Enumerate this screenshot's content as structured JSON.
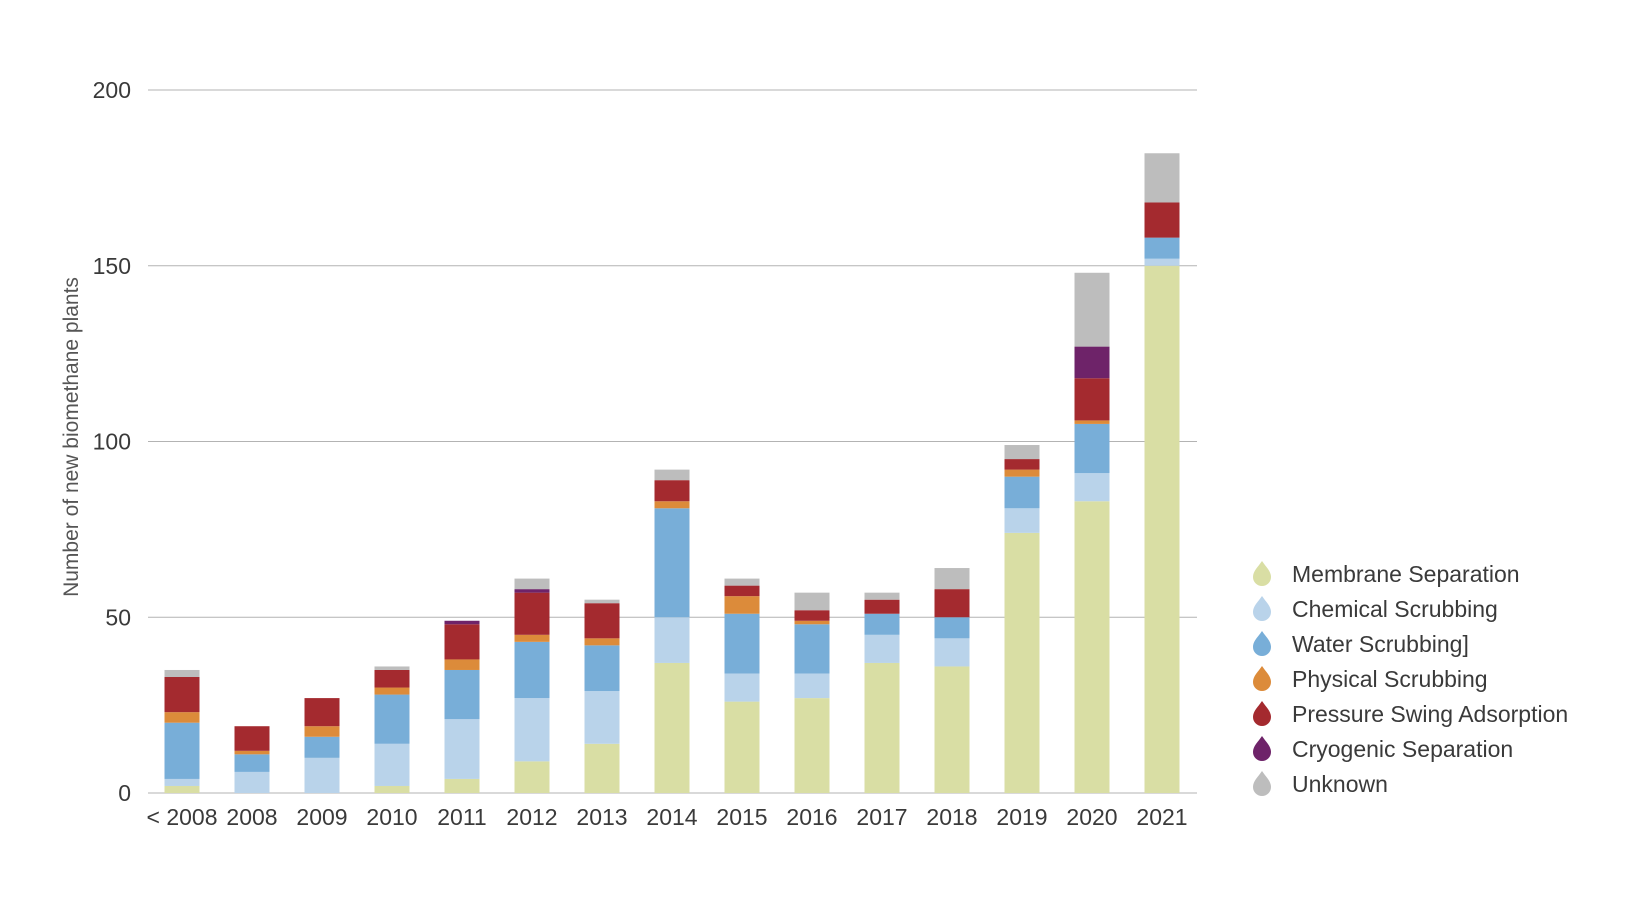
{
  "chart_data": {
    "type": "bar",
    "stacked": true,
    "title": "",
    "xlabel": "",
    "ylabel": "Number of new biomethane plants",
    "ylim": [
      0,
      200
    ],
    "yticks": [
      0,
      50,
      100,
      150,
      200
    ],
    "grid": true,
    "legend_position": "right",
    "categories": [
      "< 2008",
      "2008",
      "2009",
      "2010",
      "2011",
      "2012",
      "2013",
      "2014",
      "2015",
      "2016",
      "2017",
      "2018",
      "2019",
      "2020",
      "2021"
    ],
    "series": [
      {
        "name": "Membrane Separation",
        "color": "#d9dea4",
        "values": [
          2,
          0,
          0,
          2,
          4,
          9,
          14,
          37,
          26,
          27,
          37,
          36,
          74,
          83,
          150
        ]
      },
      {
        "name": "Chemical Scrubbing",
        "color": "#b9d3ea",
        "values": [
          2,
          6,
          10,
          12,
          17,
          18,
          15,
          13,
          8,
          7,
          8,
          8,
          7,
          8,
          2
        ]
      },
      {
        "name": "Water Scrubbing]",
        "color": "#78aed8",
        "values": [
          16,
          5,
          6,
          14,
          14,
          16,
          13,
          31,
          17,
          14,
          6,
          6,
          9,
          14,
          6
        ]
      },
      {
        "name": "Physical Scrubbing",
        "color": "#dc8b3a",
        "values": [
          3,
          1,
          3,
          2,
          3,
          2,
          2,
          2,
          5,
          1,
          0,
          0,
          2,
          1,
          0
        ]
      },
      {
        "name": "Pressure Swing Adsorption",
        "color": "#a42a2f",
        "values": [
          10,
          7,
          8,
          5,
          10,
          12,
          10,
          6,
          3,
          3,
          4,
          8,
          3,
          12,
          10
        ]
      },
      {
        "name": "Cryogenic Separation",
        "color": "#6e2369",
        "values": [
          0,
          0,
          0,
          0,
          1,
          1,
          0,
          0,
          0,
          0,
          0,
          0,
          0,
          9,
          0
        ]
      },
      {
        "name": "Unknown",
        "color": "#bdbdbd",
        "values": [
          2,
          0,
          0,
          1,
          0,
          3,
          1,
          3,
          2,
          5,
          2,
          6,
          4,
          21,
          14
        ]
      }
    ]
  }
}
